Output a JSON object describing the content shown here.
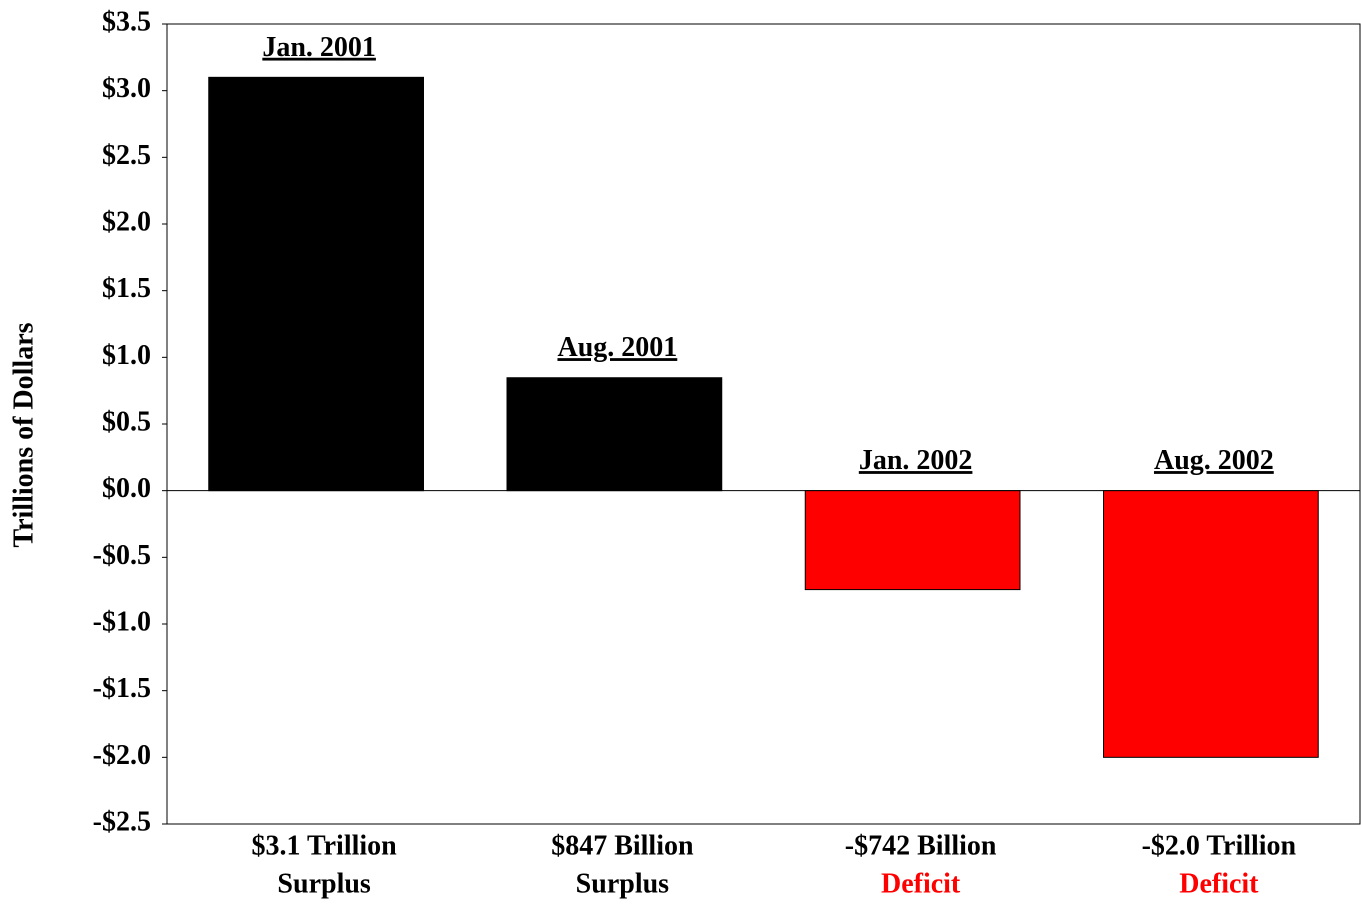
{
  "chart_data": {
    "type": "bar",
    "y_label": "Trillions of Dollars",
    "categories": [
      "Jan. 2001",
      "Aug. 2001",
      "Jan. 2002",
      "Aug. 2002"
    ],
    "values": [
      3.1,
      0.847,
      -0.742,
      -2.0
    ],
    "value_labels": [
      "$3.1 Trillion",
      "$847 Billion",
      "-$742 Billion",
      "-$2.0 Trillion"
    ],
    "annotations": [
      "Surplus",
      "Surplus",
      "Deficit",
      "Deficit"
    ],
    "colors": [
      "#000000",
      "#000000",
      "#ff0000",
      "#ff0000"
    ],
    "ylim": [
      -2.5,
      3.5
    ],
    "yticks": [
      {
        "value": -2.5,
        "label": "-$2.5"
      },
      {
        "value": -2.0,
        "label": "-$2.0"
      },
      {
        "value": -1.5,
        "label": "-$1.5"
      },
      {
        "value": -1.0,
        "label": "-$1.0"
      },
      {
        "value": -0.5,
        "label": "-$0.5"
      },
      {
        "value": 0.0,
        "label": "$0.0"
      },
      {
        "value": 0.5,
        "label": "$0.5"
      },
      {
        "value": 1.0,
        "label": "$1.0"
      },
      {
        "value": 1.5,
        "label": "$1.5"
      },
      {
        "value": 2.0,
        "label": "$2.0"
      },
      {
        "value": 2.5,
        "label": "$2.5"
      },
      {
        "value": 3.0,
        "label": "$3.0"
      },
      {
        "value": 3.5,
        "label": "$3.5"
      }
    ],
    "grid": false
  }
}
